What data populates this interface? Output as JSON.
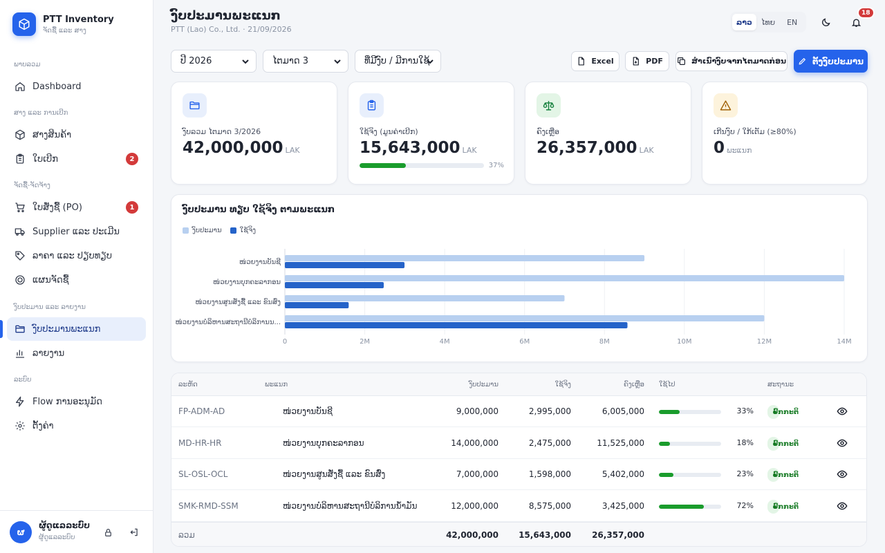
{
  "brand": {
    "name": "PTT Inventory",
    "subtitle": "ຈັດຊື້ ແລະ ສາງ"
  },
  "sidebar": {
    "sections": [
      {
        "title": "ພາບລວມ"
      },
      {
        "title": "ສາງ ແລະ ການເບີກ"
      },
      {
        "title": "ຈັດຊື້-ຈັດຈ້າງ"
      },
      {
        "title": "ງົບປະມານ ແລະ ລາຍງານ"
      },
      {
        "title": "ລະບົບ"
      }
    ],
    "items": [
      {
        "label": "Dashboard",
        "icon": "home-icon"
      },
      {
        "label": "ສາງສິນຄ້າ",
        "icon": "box-icon"
      },
      {
        "label": "ໃບເບີກ",
        "icon": "clipboard-icon",
        "badge": "2"
      },
      {
        "label": "ໃບສັ່ງຊື້ (PO)",
        "icon": "cart-icon",
        "badge": "1"
      },
      {
        "label": "Supplier ແລະ ປະເມີນ",
        "icon": "truck-icon"
      },
      {
        "label": "ລາຄາ ແລະ ປຽບທຽບ",
        "icon": "tag-icon"
      },
      {
        "label": "ແຜນຈັດຊື້",
        "icon": "target-icon"
      },
      {
        "label": "ງົບປະມານພະແນກ",
        "icon": "folder-icon",
        "active": true
      },
      {
        "label": "ລາຍງານ",
        "icon": "bar-chart-icon"
      },
      {
        "label": "Flow ການອະນຸມັດ",
        "icon": "bolt-icon"
      },
      {
        "label": "ຕັ້ງຄ່າ",
        "icon": "gear-icon"
      }
    ],
    "user": {
      "initial": "ຜ",
      "name": "ຜູ້ດູແລລະບົບ",
      "role": "ຜູ້ດູແລລະບົບ"
    }
  },
  "header": {
    "title": "ງົບປະມານພະແນກ",
    "subtitle": "PTT (Lao) Co., Ltd. · 21/09/2026",
    "languages": [
      "ລາວ",
      "ໄທຍ",
      "EN"
    ],
    "active_language": "ລາວ",
    "notification_count": "18"
  },
  "filters": {
    "year": "ປີ 2026",
    "quarter": "ໄຕມາດ 3",
    "mode": "ທີ່ມີງົບ / ມີການໃຊ້"
  },
  "actions": {
    "excel": "Excel",
    "pdf": "PDF",
    "copy": "ສຳເນົາງົບຈາກໄຕມາດກ່ອນ",
    "set_budget": "ຕັ້ງງົບປະມານ"
  },
  "kpis": [
    {
      "label": "ງົບລວມ ໄຕມາດ 3/2026",
      "value": "42,000,000",
      "unit": "LAK",
      "icon": "folder-icon",
      "color": "#2563eb",
      "bg": "#e8effc"
    },
    {
      "label": "ໃຊ້ຈິງ (ມູນຄ່າເບີກ)",
      "value": "15,643,000",
      "unit": "LAK",
      "icon": "clipboard-icon",
      "color": "#2563eb",
      "bg": "#e8effc",
      "progress": 0.37,
      "progress_label": "37%"
    },
    {
      "label": "ຄົງເຫຼືອ",
      "value": "26,357,000",
      "unit": "LAK",
      "icon": "scale-icon",
      "color": "#15803d",
      "bg": "#e3f5e6"
    },
    {
      "label": "ເກີນງົບ / ໃກ້ເຕັມ (≥80%)",
      "value": "0",
      "unit": "ພະແນກ",
      "icon": "warning-icon",
      "color": "#a16207",
      "bg": "#fdf3dc"
    }
  ],
  "chart_data": {
    "type": "bar",
    "orientation": "horizontal",
    "title": "ງົບປະມານ ທຽບ ໃຊ້ຈິງ ຕາມພະແນກ",
    "categories": [
      "ໜ່ວຍງານບັນຊີ",
      "ໜ່ວຍງານບຸກຄະລາກອນ",
      "ໜ່ວຍງານສູນສັ່ງຊື້ ແລະ ຂົນສົ່ງ",
      "ໜ່ວຍງານບໍລິຫານສະຖານີບໍລິການນ..."
    ],
    "series": [
      {
        "name": "ງົບປະມານ",
        "values": [
          9000000,
          14000000,
          7000000,
          12000000
        ],
        "color": "#b8d0f0"
      },
      {
        "name": "ໃຊ້ຈິງ",
        "values": [
          2995000,
          2475000,
          1598000,
          8575000
        ],
        "color": "#2563c9"
      }
    ],
    "xlim": [
      0,
      14000000
    ],
    "ticks": [
      "0",
      "2M",
      "4M",
      "6M",
      "8M",
      "10M",
      "12M",
      "14M"
    ],
    "legend": "top-left",
    "grid": true
  },
  "table": {
    "headers": [
      "ລະຫັດ",
      "ພະແນກ",
      "ງົບປະມານ",
      "ໃຊ້ຈິງ",
      "ຄົງເຫຼືອ",
      "ໃຊ້ໄປ",
      "ສະຖານະ"
    ],
    "rows": [
      {
        "code": "FP-ADM-AD",
        "dept": "ໜ່ວຍງານບັນຊີ",
        "budget": "9,000,000",
        "used": "2,995,000",
        "remain": "6,005,000",
        "pct": "33%",
        "ratio": 0.33,
        "status": "ປົກກະຕິ"
      },
      {
        "code": "MD-HR-HR",
        "dept": "ໜ່ວຍງານບຸກຄະລາກອນ",
        "budget": "14,000,000",
        "used": "2,475,000",
        "remain": "11,525,000",
        "pct": "18%",
        "ratio": 0.18,
        "status": "ປົກກະຕິ"
      },
      {
        "code": "SL-OSL-OCL",
        "dept": "ໜ່ວຍງານສູນສັ່ງຊື້ ແລະ ຂົນສົ່ງ",
        "budget": "7,000,000",
        "used": "1,598,000",
        "remain": "5,402,000",
        "pct": "23%",
        "ratio": 0.23,
        "status": "ປົກກະຕິ"
      },
      {
        "code": "SMK-RMD-SSM",
        "dept": "ໜ່ວຍງານບໍລິຫານສະຖານີບໍລິການນ້ຳມັນ",
        "budget": "12,000,000",
        "used": "8,575,000",
        "remain": "3,425,000",
        "pct": "72%",
        "ratio": 0.72,
        "status": "ປົກກະຕິ"
      }
    ],
    "footer": {
      "label": "ລວມ",
      "budget": "42,000,000",
      "used": "15,643,000",
      "remain": "26,357,000"
    }
  }
}
